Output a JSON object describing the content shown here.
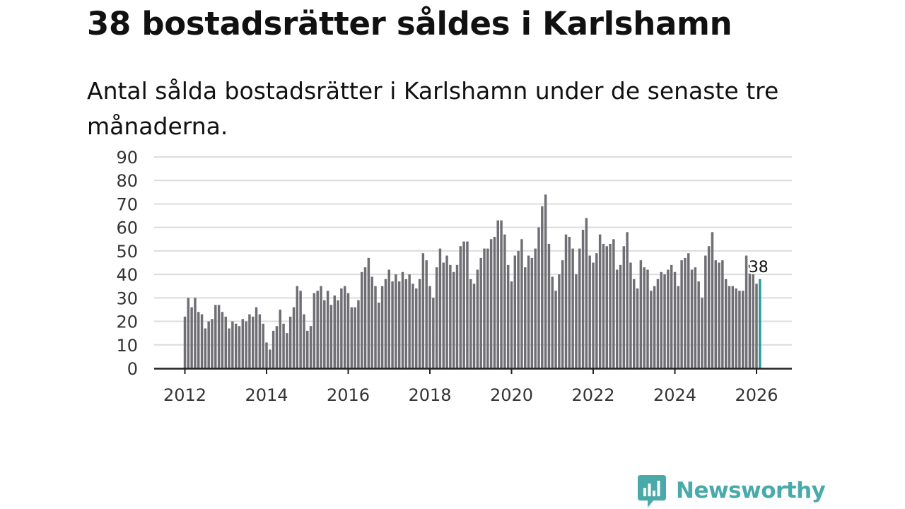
{
  "title": "38 bostadsrätter såldes i Karlshamn",
  "subtitle": "Antal sålda bostadsrätter i Karlshamn under de senaste tre månaderna.",
  "brand": {
    "name": "Newsworthy",
    "icon": "newsworthy-logo-icon",
    "color": "#4aa9a9"
  },
  "chart_data": {
    "type": "bar",
    "title": "38 bostadsrätter såldes i Karlshamn",
    "subtitle": "Antal sålda bostadsrätter i Karlshamn under de senaste tre månaderna.",
    "xlabel": "",
    "ylabel": "",
    "ylim": [
      0,
      90
    ],
    "yticks": [
      0,
      10,
      20,
      30,
      40,
      50,
      60,
      70,
      80,
      90
    ],
    "xticks": [
      "2012",
      "2014",
      "2016",
      "2018",
      "2020",
      "2022",
      "2024",
      "2026"
    ],
    "x_start": "2012-01",
    "x_end": "2026-01",
    "grid": true,
    "bar_color": "#6e6e73",
    "highlight_color": "#2a9d9d",
    "highlight_label": "38",
    "values": [
      22,
      30,
      26,
      30,
      24,
      23,
      17,
      20,
      21,
      27,
      27,
      24,
      22,
      17,
      20,
      19,
      18,
      21,
      20,
      23,
      22,
      26,
      23,
      19,
      11,
      8,
      16,
      18,
      25,
      19,
      15,
      22,
      26,
      35,
      33,
      23,
      16,
      18,
      32,
      33,
      35,
      29,
      33,
      27,
      31,
      29,
      34,
      35,
      32,
      26,
      26,
      29,
      41,
      43,
      47,
      39,
      35,
      28,
      35,
      38,
      42,
      37,
      40,
      37,
      41,
      38,
      40,
      36,
      34,
      38,
      49,
      46,
      35,
      30,
      43,
      51,
      45,
      48,
      44,
      41,
      44,
      52,
      54,
      54,
      38,
      36,
      42,
      47,
      51,
      51,
      55,
      56,
      63,
      63,
      57,
      44,
      37,
      48,
      50,
      55,
      43,
      48,
      47,
      51,
      60,
      69,
      74,
      53,
      39,
      33,
      40,
      46,
      57,
      56,
      51,
      40,
      51,
      59,
      64,
      48,
      45,
      49,
      57,
      53,
      52,
      53,
      55,
      42,
      44,
      52,
      58,
      45,
      38,
      34,
      46,
      43,
      42,
      33,
      35,
      38,
      41,
      40,
      42,
      44,
      41,
      35,
      46,
      47,
      49,
      42,
      43,
      37,
      30,
      48,
      52,
      58,
      46,
      45,
      46,
      38,
      35,
      35,
      34,
      33,
      33,
      48,
      44,
      41,
      36,
      38
    ]
  }
}
